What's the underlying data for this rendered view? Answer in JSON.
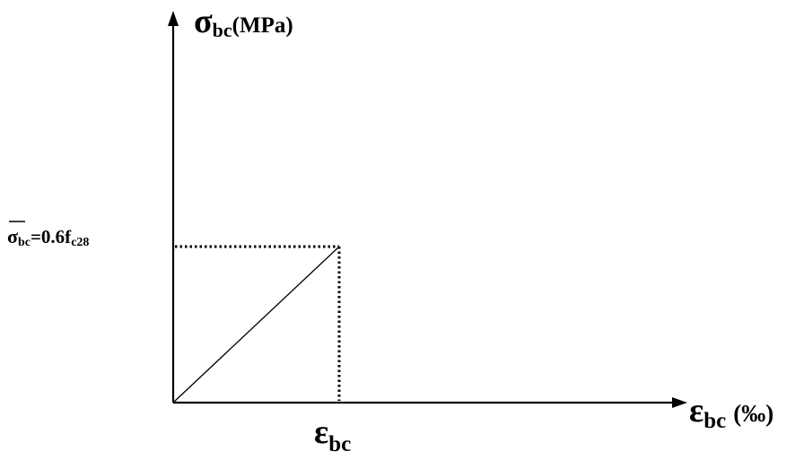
{
  "diagram": {
    "y_axis": {
      "symbol": "σ",
      "subscript": "bc",
      "unit": "(MPa)"
    },
    "x_axis": {
      "symbol": "ε",
      "subscript": "bc",
      "unit": "(‰)"
    },
    "limit_label": {
      "symbol": "σ",
      "subscript": "bc",
      "equals": "=0.6f",
      "f_subscript": "c28"
    },
    "strain_label": {
      "symbol": "ε",
      "subscript": "bc"
    },
    "colors": {
      "ink": "#000000",
      "background": "#ffffff"
    }
  }
}
